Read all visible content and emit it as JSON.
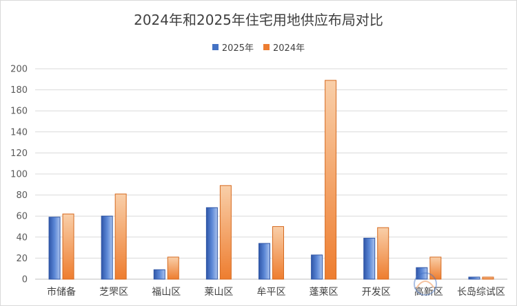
{
  "chart_data": {
    "type": "bar",
    "title": "2024年和2025年住宅用地供应布局对比",
    "categories": [
      "市储备",
      "芝罘区",
      "福山区",
      "莱山区",
      "牟平区",
      "蓬莱区",
      "开发区",
      "高新区",
      "长岛综试区"
    ],
    "series": [
      {
        "name": "2025年",
        "values": [
          59,
          60,
          9,
          68,
          34,
          23,
          39,
          11,
          2
        ],
        "color": "#4472c4"
      },
      {
        "name": "2024年",
        "values": [
          62,
          81,
          21,
          89,
          50,
          189,
          49,
          21,
          2
        ],
        "color": "#ed7d31"
      }
    ],
    "ylim": [
      0,
      200
    ],
    "yticks": [
      "0",
      "20",
      "40",
      "60",
      "80",
      "100",
      "120",
      "140",
      "160",
      "180",
      "200"
    ],
    "grid": true,
    "legend_position": "top-center"
  }
}
